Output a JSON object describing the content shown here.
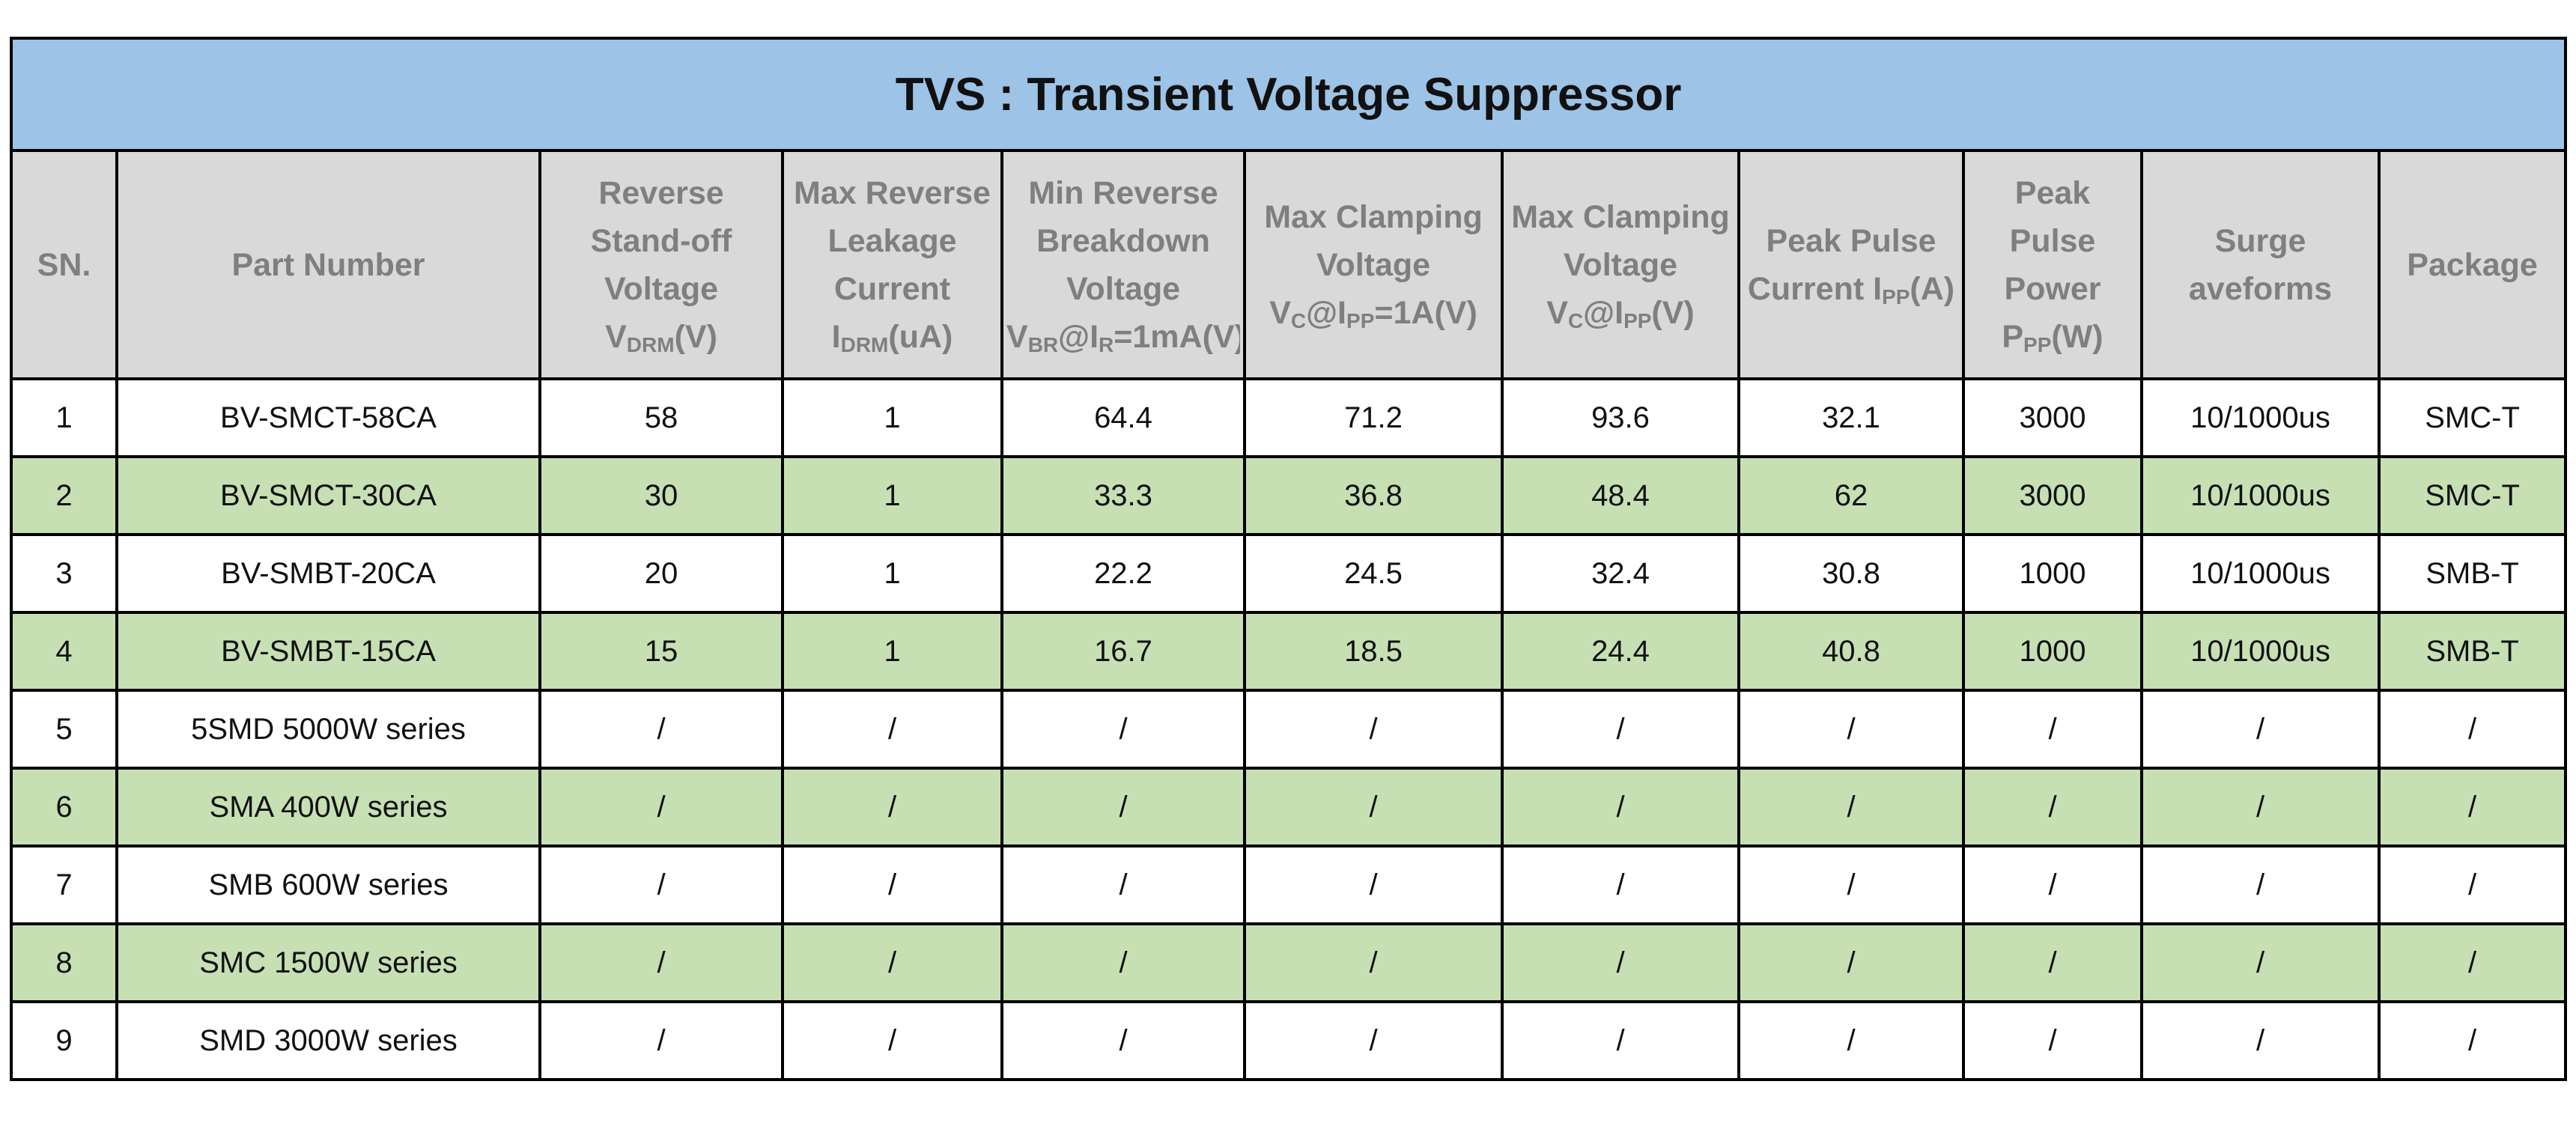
{
  "title": "TVS : Transient Voltage Suppressor",
  "table": {
    "header": [
      [
        {
          "text": "SN."
        }
      ],
      [
        {
          "text": "Part Number"
        }
      ],
      [
        {
          "text": "Reverse Stand-off Voltage V"
        },
        {
          "text": "DRM",
          "sub": true
        },
        {
          "text": "(V)"
        }
      ],
      [
        {
          "text": "Max Reverse Leakage Current I"
        },
        {
          "text": "DRM",
          "sub": true
        },
        {
          "text": "(uA)"
        }
      ],
      [
        {
          "text": "Min Reverse Breakdown Voltage V"
        },
        {
          "text": "BR",
          "sub": true
        },
        {
          "text": "@I"
        },
        {
          "text": "R",
          "sub": true
        },
        {
          "text": "=1mA(V)"
        }
      ],
      [
        {
          "text": "Max Clamping Voltage V"
        },
        {
          "text": "C",
          "sub": true
        },
        {
          "text": "@I"
        },
        {
          "text": "PP",
          "sub": true
        },
        {
          "text": "=1A(V)"
        }
      ],
      [
        {
          "text": "Max Clamping Voltage V"
        },
        {
          "text": "C",
          "sub": true
        },
        {
          "text": "@I"
        },
        {
          "text": "PP",
          "sub": true
        },
        {
          "text": "(V)"
        }
      ],
      [
        {
          "text": "Peak Pulse Current I"
        },
        {
          "text": "PP",
          "sub": true
        },
        {
          "text": "(A)"
        }
      ],
      [
        {
          "text": "Peak Pulse Power P"
        },
        {
          "text": "PP",
          "sub": true
        },
        {
          "text": "(W)"
        }
      ],
      [
        {
          "text": "Surge aveforms"
        }
      ],
      [
        {
          "text": "Package"
        }
      ]
    ],
    "rows": [
      [
        "1",
        "BV-SMCT-58CA",
        "58",
        "1",
        "64.4",
        "71.2",
        "93.6",
        "32.1",
        "3000",
        "10/1000us",
        "SMC-T"
      ],
      [
        "2",
        "BV-SMCT-30CA",
        "30",
        "1",
        "33.3",
        "36.8",
        "48.4",
        "62",
        "3000",
        "10/1000us",
        "SMC-T"
      ],
      [
        "3",
        "BV-SMBT-20CA",
        "20",
        "1",
        "22.2",
        "24.5",
        "32.4",
        "30.8",
        "1000",
        "10/1000us",
        "SMB-T"
      ],
      [
        "4",
        "BV-SMBT-15CA",
        "15",
        "1",
        "16.7",
        "18.5",
        "24.4",
        "40.8",
        "1000",
        "10/1000us",
        "SMB-T"
      ],
      [
        "5",
        "5SMD 5000W series",
        "/",
        "/",
        "/",
        "/",
        "/",
        "/",
        "/",
        "/",
        "/"
      ],
      [
        "6",
        "SMA 400W series",
        "/",
        "/",
        "/",
        "/",
        "/",
        "/",
        "/",
        "/",
        "/"
      ],
      [
        "7",
        "SMB 600W series",
        "/",
        "/",
        "/",
        "/",
        "/",
        "/",
        "/",
        "/",
        "/"
      ],
      [
        "8",
        "SMC 1500W series",
        "/",
        "/",
        "/",
        "/",
        "/",
        "/",
        "/",
        "/",
        "/"
      ],
      [
        "9",
        "SMD 3000W series",
        "/",
        "/",
        "/",
        "/",
        "/",
        "/",
        "/",
        "/",
        "/"
      ]
    ]
  }
}
